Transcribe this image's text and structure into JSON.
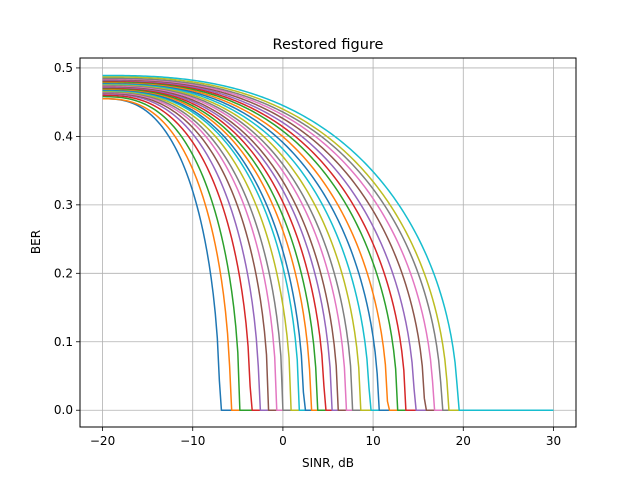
{
  "chart_data": {
    "type": "line",
    "title": "Restored figure",
    "xlabel": "SINR, dB",
    "ylabel": "BER",
    "xlim": [
      -22.5,
      32.5
    ],
    "ylim": [
      -0.0245,
      0.5145
    ],
    "xticks": [
      -20,
      -10,
      0,
      10,
      20,
      30
    ],
    "xtick_labels": [
      "−20",
      "−10",
      "0",
      "10",
      "20",
      "30"
    ],
    "yticks": [
      0.0,
      0.1,
      0.2,
      0.3,
      0.4,
      0.5
    ],
    "ytick_labels": [
      "0.0",
      "0.1",
      "0.2",
      "0.3",
      "0.4",
      "0.5"
    ],
    "grid": true,
    "legend": "none",
    "x_start": -20,
    "x_end": 30,
    "colors": [
      "#1f77b4",
      "#ff7f0e",
      "#2ca02c",
      "#d62728",
      "#9467bd",
      "#8c564b",
      "#e377c2",
      "#7f7f7f",
      "#bcbd22",
      "#17becf"
    ],
    "series": [
      {
        "y0": 0.455,
        "cutoff": -7.0
      },
      {
        "y0": 0.455,
        "cutoff": -5.8
      },
      {
        "y0": 0.458,
        "cutoff": -4.8
      },
      {
        "y0": 0.46,
        "cutoff": -3.6
      },
      {
        "y0": 0.462,
        "cutoff": -2.6
      },
      {
        "y0": 0.463,
        "cutoff": -1.6
      },
      {
        "y0": 0.464,
        "cutoff": -0.7
      },
      {
        "y0": 0.465,
        "cutoff": 0.0
      },
      {
        "y0": 0.466,
        "cutoff": 0.9
      },
      {
        "y0": 0.467,
        "cutoff": 1.8
      },
      {
        "y0": 0.468,
        "cutoff": 2.3
      },
      {
        "y0": 0.469,
        "cutoff": 3.1
      },
      {
        "y0": 0.47,
        "cutoff": 3.8
      },
      {
        "y0": 0.471,
        "cutoff": 4.6
      },
      {
        "y0": 0.472,
        "cutoff": 5.4
      },
      {
        "y0": 0.473,
        "cutoff": 6.1
      },
      {
        "y0": 0.474,
        "cutoff": 7.0
      },
      {
        "y0": 0.475,
        "cutoff": 7.7
      },
      {
        "y0": 0.476,
        "cutoff": 8.6
      },
      {
        "y0": 0.477,
        "cutoff": 9.6
      },
      {
        "y0": 0.478,
        "cutoff": 10.6
      },
      {
        "y0": 0.479,
        "cutoff": 11.6
      },
      {
        "y0": 0.48,
        "cutoff": 12.7
      },
      {
        "y0": 0.481,
        "cutoff": 13.6
      },
      {
        "y0": 0.482,
        "cutoff": 14.6
      },
      {
        "y0": 0.483,
        "cutoff": 15.7
      },
      {
        "y0": 0.484,
        "cutoff": 16.7
      },
      {
        "y0": 0.485,
        "cutoff": 17.6
      },
      {
        "y0": 0.487,
        "cutoff": 18.3
      },
      {
        "y0": 0.489,
        "cutoff": 19.4
      }
    ]
  }
}
